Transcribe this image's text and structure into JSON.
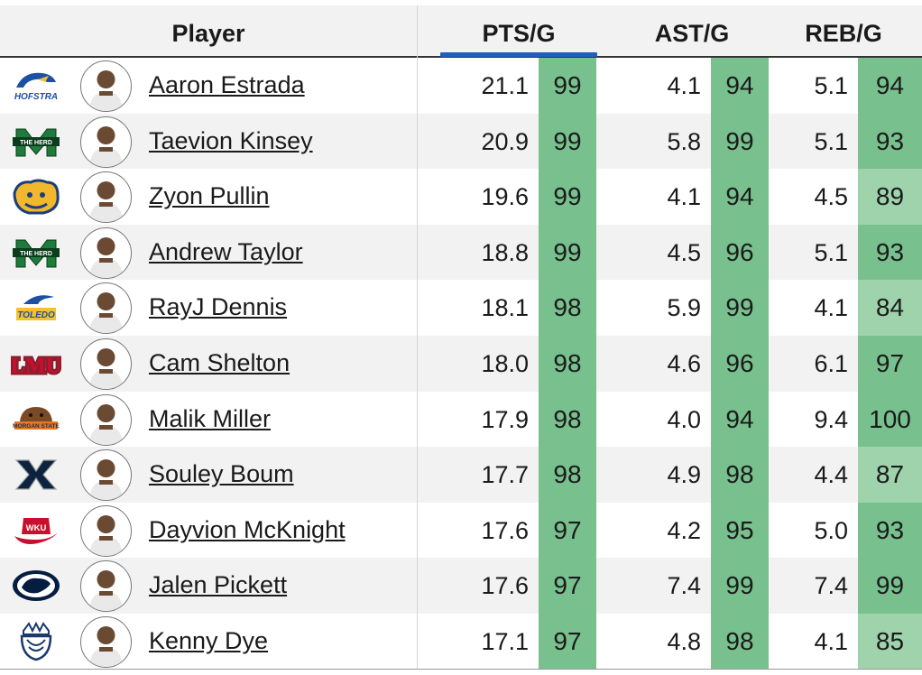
{
  "columns": {
    "player": "Player",
    "pts": "PTS/G",
    "ast": "AST/G",
    "reb": "REB/G"
  },
  "colors": {
    "sort_indicator": "#1f5fbf",
    "rank_strong": "#78c08e",
    "rank_light": "#9ed3ac",
    "row_alt": "#f2f2f2"
  },
  "rows": [
    {
      "name": "Aaron Estrada",
      "team_logo": "hofstra-logo-icon",
      "pts": "21.1",
      "pts_rank": "99",
      "ast": "4.1",
      "ast_rank": "94",
      "reb": "5.1",
      "reb_rank": "94"
    },
    {
      "name": "Taevion Kinsey",
      "team_logo": "marshall-logo-icon",
      "pts": "20.9",
      "pts_rank": "99",
      "ast": "5.8",
      "ast_rank": "99",
      "reb": "5.1",
      "reb_rank": "93"
    },
    {
      "name": "Zyon Pullin",
      "team_logo": "uc-riverside-logo-icon",
      "pts": "19.6",
      "pts_rank": "99",
      "ast": "4.1",
      "ast_rank": "94",
      "reb": "4.5",
      "reb_rank": "89"
    },
    {
      "name": "Andrew Taylor",
      "team_logo": "marshall-logo-icon",
      "pts": "18.8",
      "pts_rank": "99",
      "ast": "4.5",
      "ast_rank": "96",
      "reb": "5.1",
      "reb_rank": "93"
    },
    {
      "name": "RayJ Dennis",
      "team_logo": "toledo-logo-icon",
      "pts": "18.1",
      "pts_rank": "98",
      "ast": "5.9",
      "ast_rank": "99",
      "reb": "4.1",
      "reb_rank": "84"
    },
    {
      "name": "Cam Shelton",
      "team_logo": "lmu-logo-icon",
      "pts": "18.0",
      "pts_rank": "98",
      "ast": "4.6",
      "ast_rank": "96",
      "reb": "6.1",
      "reb_rank": "97"
    },
    {
      "name": "Malik Miller",
      "team_logo": "morgan-state-logo-icon",
      "pts": "17.9",
      "pts_rank": "98",
      "ast": "4.0",
      "ast_rank": "94",
      "reb": "9.4",
      "reb_rank": "100"
    },
    {
      "name": "Souley Boum",
      "team_logo": "xavier-logo-icon",
      "pts": "17.7",
      "pts_rank": "98",
      "ast": "4.9",
      "ast_rank": "98",
      "reb": "4.4",
      "reb_rank": "87"
    },
    {
      "name": "Dayvion McKnight",
      "team_logo": "wku-logo-icon",
      "pts": "17.6",
      "pts_rank": "97",
      "ast": "4.2",
      "ast_rank": "95",
      "reb": "5.0",
      "reb_rank": "93"
    },
    {
      "name": "Jalen Pickett",
      "team_logo": "penn-state-logo-icon",
      "pts": "17.6",
      "pts_rank": "97",
      "ast": "7.4",
      "ast_rank": "99",
      "reb": "7.4",
      "reb_rank": "99"
    },
    {
      "name": "Kenny Dye",
      "team_logo": "queens-logo-icon",
      "pts": "17.1",
      "pts_rank": "97",
      "ast": "4.8",
      "ast_rank": "98",
      "reb": "4.1",
      "reb_rank": "85"
    }
  ],
  "logo_text": {
    "hofstra": "HOFSTRA",
    "marshall": "THE HERD",
    "toledo": "TOLEDO",
    "lmu": "LMU",
    "morgan_state": "MORGAN STATE",
    "wku": "WKU"
  }
}
